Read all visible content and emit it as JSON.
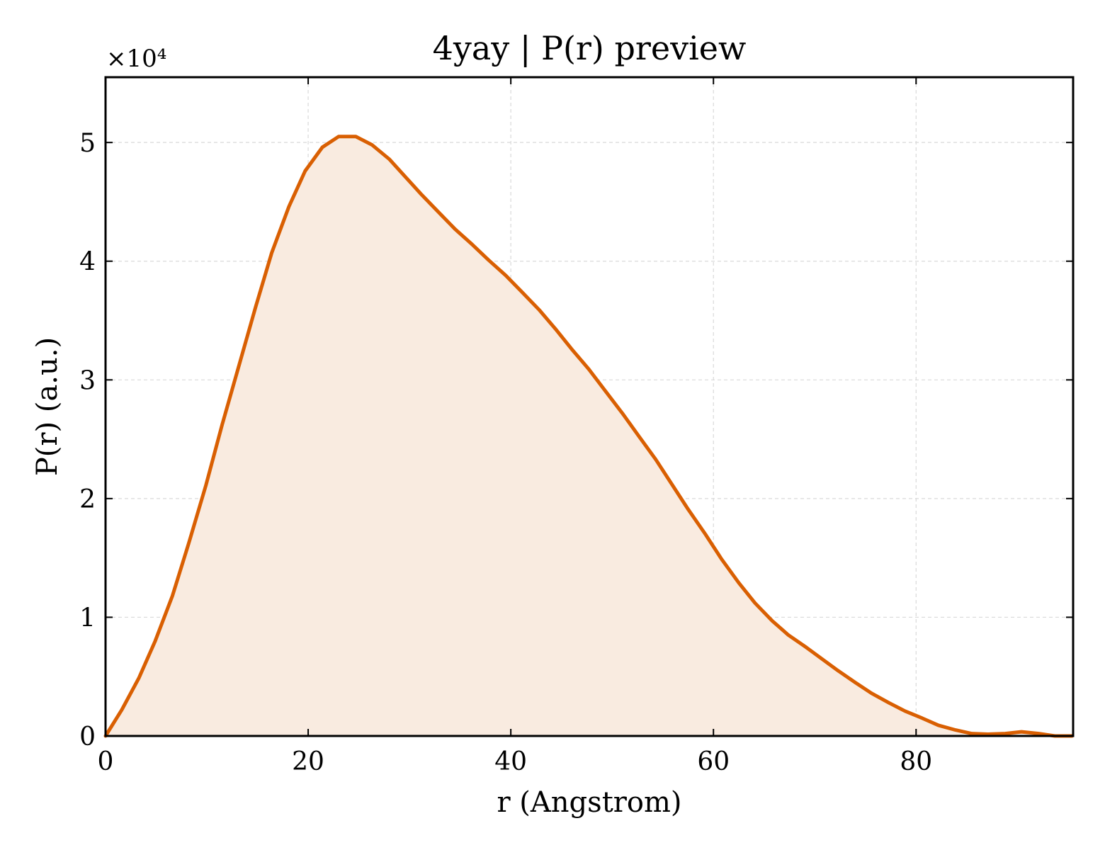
{
  "chart_data": {
    "type": "area",
    "title": "4yay | P(r) preview",
    "xlabel": "r (Angstrom)",
    "ylabel": "P(r) (a.u.)",
    "y_multiplier_label": "×10⁴",
    "y_scale_factor": 10000,
    "xlim": [
      0,
      95.5
    ],
    "ylim": [
      0,
      55500
    ],
    "xticks": [
      0,
      20,
      40,
      60,
      80
    ],
    "xtick_labels": [
      "0",
      "20",
      "40",
      "60",
      "80"
    ],
    "yticks": [
      0,
      10000,
      20000,
      30000,
      40000,
      50000
    ],
    "ytick_labels": [
      "0",
      "1",
      "2",
      "3",
      "4",
      "5"
    ],
    "grid": true,
    "line_color": "#d95f02",
    "fill_color": "#f9ebe0",
    "series": [
      {
        "x": [
          0,
          1.6,
          3.3,
          4.9,
          6.6,
          8.2,
          9.9,
          11.5,
          13.2,
          14.8,
          16.4,
          18.1,
          19.7,
          21.4,
          23.0,
          24.7,
          26.3,
          28.0,
          29.6,
          31.2,
          32.9,
          34.5,
          36.2,
          37.8,
          39.5,
          41.1,
          42.8,
          44.4,
          46.0,
          47.7,
          49.3,
          51.0,
          52.6,
          54.3,
          55.9,
          57.5,
          59.2,
          60.8,
          62.5,
          64.1,
          65.8,
          67.4,
          69.1,
          70.7,
          72.3,
          74.0,
          75.6,
          77.3,
          78.9,
          80.6,
          82.2,
          83.9,
          85.5,
          87.1,
          88.8,
          90.4,
          92.1,
          93.7,
          95.4
        ],
        "y": [
          0,
          2200,
          4900,
          8000,
          11800,
          16200,
          21100,
          26200,
          31300,
          36100,
          40700,
          44600,
          47600,
          49600,
          50500,
          50500,
          49800,
          48600,
          47100,
          45600,
          44100,
          42700,
          41400,
          40100,
          38800,
          37400,
          35900,
          34300,
          32600,
          30900,
          29100,
          27200,
          25300,
          23300,
          21200,
          19100,
          17000,
          14900,
          12900,
          11200,
          9700,
          8500,
          7500,
          6500,
          5500,
          4500,
          3600,
          2800,
          2100,
          1500,
          900,
          500,
          200,
          150,
          200,
          350,
          200,
          0,
          0
        ]
      }
    ]
  }
}
